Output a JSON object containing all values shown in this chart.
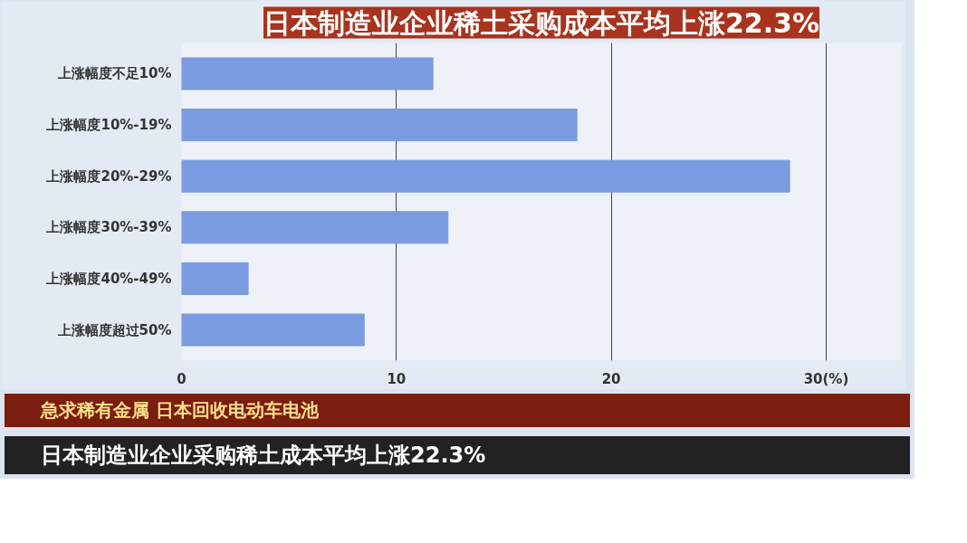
{
  "chart_data": {
    "type": "bar",
    "orientation": "horizontal",
    "title": "日本制造业企业稀土采购成本平均上涨22.3%",
    "categories": [
      "上涨幅度不足10%",
      "上涨幅度10%-19%",
      "上涨幅度20%-29%",
      "上涨幅度30%-39%",
      "上涨幅度40%-49%",
      "上涨幅度超过50%"
    ],
    "values": [
      11.7,
      18.4,
      28.3,
      12.4,
      3.1,
      8.5
    ],
    "color": "#7b9be0",
    "xlim": [
      0,
      33.5
    ],
    "xticks": [
      0,
      10,
      20,
      {
        "value": 30,
        "label": "30(%)"
      }
    ],
    "grid": "x",
    "annotations": [
      "急求稀有金属 日本回收电动车电池",
      "日本制造业企业采购稀土成本平均上涨22.3%"
    ]
  }
}
